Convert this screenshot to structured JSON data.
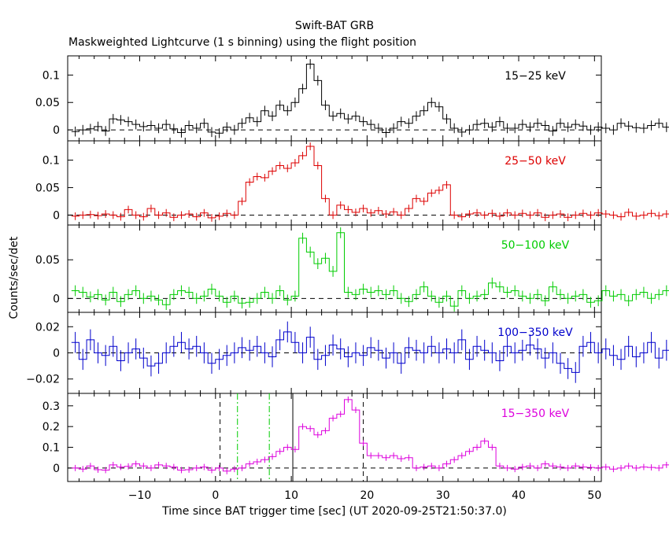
{
  "title": "Swift-BAT GRB",
  "subtitle": "Maskweighted Lightcurve (1 s binning) using the flight position",
  "colors": {
    "axes": "#000000",
    "black": "#000000",
    "red": "#dd0000",
    "green": "#00cc00",
    "blue": "#0000cc",
    "magenta": "#dd00dd"
  },
  "chart_data": {
    "type": "line",
    "title": "Swift-BAT GRB",
    "subtitle": "Maskweighted Lightcurve (1 s binning) using the flight position",
    "xlabel": "Time since BAT trigger time [sec] (UT 2020-09-25T21:50:37.0)",
    "ylabel": "Counts/sec/det",
    "xlim": [
      -19.5,
      50.9
    ],
    "xticks": [
      -10,
      0,
      10,
      20,
      30,
      40,
      50
    ],
    "xtick_labels": [
      "−10",
      "0",
      "10",
      "20",
      "30",
      "40",
      "50"
    ],
    "x_start": -19,
    "bin_width": 1,
    "panels": [
      {
        "name": "15−25 keV",
        "color": "black",
        "ylim": [
          -0.02,
          0.135
        ],
        "yticks": [
          0,
          0.05,
          0.1
        ],
        "ytick_labels": [
          "0",
          "0.05",
          "0.1"
        ],
        "err": 0.009,
        "values": [
          -0.003,
          0.0,
          0.002,
          0.006,
          -0.002,
          0.02,
          0.018,
          0.015,
          0.01,
          0.006,
          0.008,
          0.003,
          0.01,
          0.002,
          -0.005,
          0.008,
          0.003,
          0.012,
          -0.004,
          -0.006,
          0.005,
          0.0,
          0.012,
          0.022,
          0.015,
          0.035,
          0.025,
          0.045,
          0.035,
          0.05,
          0.075,
          0.12,
          0.09,
          0.045,
          0.025,
          0.03,
          0.02,
          0.025,
          0.015,
          0.01,
          0.003,
          -0.005,
          0.003,
          0.015,
          0.012,
          0.025,
          0.035,
          0.05,
          0.042,
          0.02,
          0.003,
          -0.004,
          0.0,
          0.01,
          0.012,
          0.005,
          0.015,
          0.003,
          0.003,
          0.01,
          0.005,
          0.012,
          0.008,
          -0.002,
          0.012,
          0.005,
          0.01,
          0.007,
          0.0,
          0.005,
          0.003,
          0.0,
          0.012,
          0.007,
          0.004,
          0.003,
          0.008,
          0.012,
          0.005,
          0.008,
          0.01,
          0.003,
          0.0,
          0.004,
          0.002,
          0.0,
          0.007,
          0.002,
          0.005,
          0.0
        ],
        "dashed_lines": [],
        "dashdot_lines": [],
        "solid_lines": []
      },
      {
        "name": "25−50 keV",
        "color": "red",
        "ylim": [
          -0.018,
          0.135
        ],
        "yticks": [
          0,
          0.05,
          0.1
        ],
        "ytick_labels": [
          "0",
          "0.05",
          "0.1"
        ],
        "err": 0.007,
        "values": [
          -0.002,
          0.0,
          0.001,
          -0.001,
          0.002,
          0.0,
          -0.003,
          0.01,
          0.0,
          -0.003,
          0.012,
          0.0,
          0.004,
          -0.004,
          0.0,
          0.002,
          -0.003,
          0.004,
          -0.005,
          -0.002,
          0.003,
          0.0,
          0.025,
          0.06,
          0.07,
          0.068,
          0.08,
          0.09,
          0.085,
          0.095,
          0.108,
          0.125,
          0.09,
          0.03,
          0.0,
          0.018,
          0.01,
          0.005,
          0.012,
          0.004,
          0.008,
          0.002,
          0.006,
          0.0,
          0.012,
          0.03,
          0.025,
          0.04,
          0.045,
          0.055,
          0.0,
          -0.003,
          0.002,
          0.004,
          0.0,
          0.003,
          -0.002,
          0.004,
          0.0,
          0.003,
          0.0,
          0.004,
          -0.004,
          0.0,
          0.002,
          -0.004,
          0.0,
          0.003,
          0.0,
          0.004,
          0.002,
          0.0,
          -0.003,
          0.005,
          -0.002,
          0.0,
          0.003,
          -0.001,
          0.002,
          -0.003,
          0.0,
          0.003,
          0.0,
          0.002,
          -0.005,
          0.0,
          -0.004,
          -0.002,
          0.003,
          0.0
        ],
        "dashed_lines": [],
        "dashdot_lines": [],
        "solid_lines": []
      },
      {
        "name": "50−100 keV",
        "color": "green",
        "ylim": [
          -0.018,
          0.095
        ],
        "yticks": [
          0,
          0.05
        ],
        "ytick_labels": [
          "0",
          "0.05"
        ],
        "err": 0.007,
        "values": [
          0.01,
          0.008,
          0.002,
          0.005,
          -0.002,
          0.008,
          -0.004,
          0.005,
          0.01,
          0.0,
          0.003,
          -0.002,
          -0.008,
          0.005,
          0.01,
          0.008,
          0.0,
          0.003,
          0.012,
          0.003,
          -0.005,
          0.003,
          -0.006,
          -0.005,
          0.0,
          0.008,
          0.0,
          0.01,
          -0.002,
          0.003,
          0.078,
          0.06,
          0.045,
          0.052,
          0.035,
          0.085,
          0.008,
          0.005,
          0.012,
          0.008,
          0.01,
          0.005,
          0.01,
          0.0,
          -0.004,
          0.005,
          0.015,
          0.003,
          -0.005,
          0.003,
          -0.01,
          0.01,
          0.0,
          0.003,
          0.005,
          0.02,
          0.015,
          0.008,
          0.01,
          0.003,
          0.0,
          0.005,
          -0.003,
          0.015,
          0.005,
          0.0,
          0.003,
          0.005,
          -0.005,
          -0.003,
          0.01,
          0.003,
          0.005,
          -0.003,
          0.005,
          0.008,
          0.0,
          0.005,
          0.01,
          0.003,
          0.0,
          -0.004,
          0.008,
          0.002,
          0.0,
          0.005,
          0.003,
          -0.004,
          0.003,
          0.0
        ],
        "dashed_lines": [],
        "dashdot_lines": [],
        "solid_lines": []
      },
      {
        "name": "100−350 keV",
        "color": "blue",
        "ylim": [
          -0.031,
          0.031
        ],
        "yticks": [
          -0.02,
          0,
          0.02
        ],
        "ytick_labels": [
          "−0.02",
          "0",
          "0.02"
        ],
        "err": 0.008,
        "values": [
          0.008,
          -0.005,
          0.01,
          0.0,
          -0.002,
          0.005,
          -0.006,
          0.0,
          0.003,
          -0.004,
          -0.01,
          -0.008,
          0.0,
          0.005,
          0.008,
          0.003,
          0.005,
          0.0,
          -0.008,
          -0.005,
          -0.002,
          0.0,
          0.004,
          0.002,
          0.005,
          0.0,
          -0.003,
          0.01,
          0.016,
          0.008,
          0.0,
          0.012,
          -0.005,
          -0.002,
          0.006,
          0.003,
          -0.003,
          0.0,
          -0.002,
          0.004,
          0.002,
          -0.004,
          0.0,
          -0.008,
          0.004,
          0.002,
          0.0,
          0.005,
          0.0,
          0.003,
          0.0,
          0.01,
          -0.005,
          0.005,
          0.002,
          0.0,
          -0.006,
          0.005,
          0.0,
          0.002,
          0.006,
          0.003,
          -0.004,
          0.0,
          -0.008,
          -0.012,
          -0.015,
          0.005,
          0.008,
          0.0,
          0.003,
          -0.002,
          -0.005,
          0.005,
          -0.003,
          0.0,
          0.008,
          -0.004,
          0.002,
          0.004,
          -0.003,
          0.0,
          -0.002,
          0.005,
          0.002,
          0.0,
          -0.003,
          0.003,
          -0.002,
          -0.005
        ],
        "dashed_lines": [],
        "dashdot_lines": [],
        "solid_lines": []
      },
      {
        "name": "15−350 keV",
        "color": "magenta",
        "ylim": [
          -0.065,
          0.36
        ],
        "yticks": [
          0,
          0.1,
          0.2,
          0.3
        ],
        "ytick_labels": [
          "0",
          "0.1",
          "0.2",
          "0.3"
        ],
        "err": 0.015,
        "values": [
          0.0,
          -0.005,
          0.01,
          -0.008,
          -0.01,
          0.015,
          0.005,
          0.008,
          0.02,
          0.01,
          0.0,
          0.015,
          0.01,
          0.005,
          -0.01,
          -0.008,
          0.0,
          0.005,
          -0.01,
          0.0,
          -0.015,
          -0.005,
          0.0,
          0.02,
          0.03,
          0.04,
          0.055,
          0.08,
          0.1,
          0.09,
          0.2,
          0.19,
          0.16,
          0.18,
          0.24,
          0.26,
          0.33,
          0.28,
          0.12,
          0.06,
          0.06,
          0.05,
          0.06,
          0.045,
          0.05,
          0.0,
          0.005,
          0.01,
          0.0,
          0.02,
          0.04,
          0.06,
          0.08,
          0.1,
          0.13,
          0.1,
          0.01,
          0.0,
          -0.005,
          0.005,
          0.01,
          0.0,
          0.02,
          0.01,
          0.005,
          0.0,
          0.01,
          0.005,
          0.003,
          0.0,
          0.005,
          -0.005,
          0.0,
          0.01,
          0.0,
          0.005,
          0.003,
          0.0,
          0.015,
          0.01,
          0.02,
          0.008,
          0.005,
          0.0,
          -0.008,
          0.0,
          -0.005,
          0.003,
          -0.01,
          -0.005
        ],
        "dashed_lines": [
          0.6,
          19.5
        ],
        "dashdot_lines": [
          2.9,
          7.1
        ],
        "solid_lines": [
          10.2
        ]
      }
    ]
  }
}
